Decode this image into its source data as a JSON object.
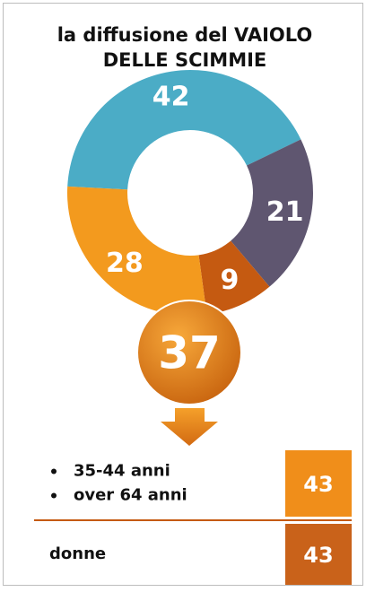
{
  "chart_data": {
    "type": "donut",
    "title": [
      "la diffusione del VAIOLO",
      "DELLE SCIMMIE"
    ],
    "values": [
      42,
      21,
      9,
      28
    ],
    "colors": [
      "#4bacc6",
      "#5f5670",
      "#c55a11",
      "#f39a1e"
    ]
  },
  "highlight": {
    "value": 37
  },
  "groups": [
    {
      "items": [
        "35-44 anni",
        "over 64 anni"
      ],
      "value": 43
    },
    {
      "items": [
        "donne"
      ],
      "value": 43
    }
  ]
}
